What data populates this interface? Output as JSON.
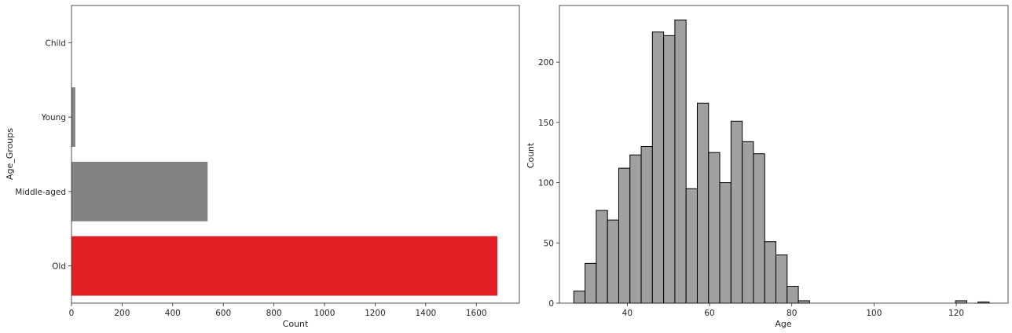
{
  "chart_data": [
    {
      "type": "bar",
      "orientation": "horizontal",
      "categories": [
        "Child",
        "Young",
        "Middle-aged",
        "Old"
      ],
      "values": [
        0,
        15,
        538,
        1683
      ],
      "bar_colors": [
        "#828282",
        "#828282",
        "#828282",
        "#e02024"
      ],
      "xlabel": "Count",
      "ylabel": "Age_Groups",
      "xlim": [
        0,
        1770
      ],
      "xticks": [
        0,
        200,
        400,
        600,
        800,
        1000,
        1200,
        1400,
        1600
      ],
      "grid": false,
      "legend": "none"
    },
    {
      "type": "histogram",
      "bin_start": 27.0,
      "bin_width": 2.73,
      "counts": [
        10,
        33,
        77,
        69,
        112,
        123,
        130,
        225,
        222,
        235,
        95,
        166,
        125,
        100,
        151,
        134,
        124,
        51,
        40,
        14,
        2,
        0,
        0,
        0,
        0,
        0,
        0,
        0,
        0,
        0,
        0,
        0,
        0,
        0,
        2,
        0,
        1
      ],
      "bar_color": "#a0a0a0",
      "edge_color": "#000000",
      "xlabel": "Age",
      "ylabel": "Count",
      "xlim": [
        23.5,
        132.6
      ],
      "ylim": [
        0,
        247
      ],
      "xticks": [
        40,
        60,
        80,
        100,
        120
      ],
      "yticks": [
        0,
        50,
        100,
        150,
        200
      ],
      "grid": false,
      "legend": "none"
    }
  ]
}
